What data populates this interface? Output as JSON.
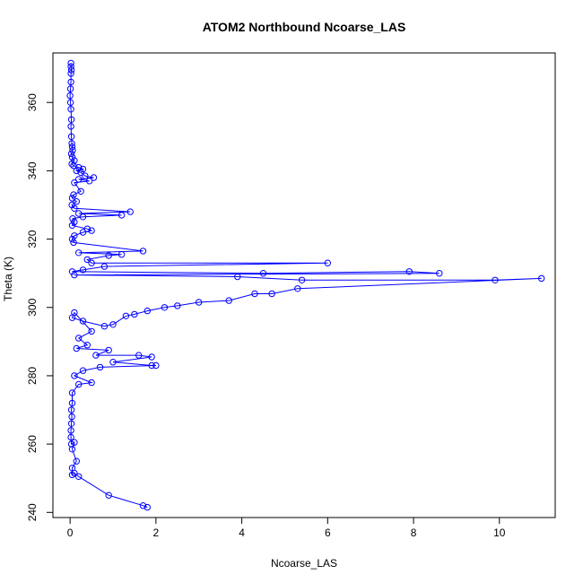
{
  "chart_data": {
    "type": "line",
    "title": "ATOM2 Northbound Ncoarse_LAS",
    "xlabel": "Ncoarse_LAS",
    "ylabel": "Theta (K)",
    "xlim": [
      -0.4,
      11.3
    ],
    "ylim": [
      238.5,
      374.5
    ],
    "xticks": [
      0,
      2,
      4,
      6,
      8,
      10
    ],
    "yticks": [
      240,
      260,
      280,
      300,
      320,
      340,
      360
    ],
    "grid": false,
    "legend": "none",
    "colors": {
      "series": "#0000ff"
    },
    "series": [
      {
        "points": [
          [
            0.02,
            371.5
          ],
          [
            0.02,
            370.5
          ],
          [
            0.03,
            369.5
          ],
          [
            0.02,
            368.5
          ],
          [
            0.02,
            366.0
          ],
          [
            0.01,
            364.0
          ],
          [
            0.0,
            362.0
          ],
          [
            0.01,
            360.0
          ],
          [
            0.02,
            358.0
          ],
          [
            0.03,
            355.0
          ],
          [
            0.02,
            353.0
          ],
          [
            0.03,
            350.0
          ],
          [
            0.04,
            348.0
          ],
          [
            0.05,
            347.0
          ],
          [
            0.06,
            346.0
          ],
          [
            0.03,
            345.0
          ],
          [
            0.05,
            344.0
          ],
          [
            0.1,
            343.0
          ],
          [
            0.04,
            342.0
          ],
          [
            0.08,
            341.5
          ],
          [
            0.2,
            341.0
          ],
          [
            0.3,
            340.5
          ],
          [
            0.15,
            340.0
          ],
          [
            0.25,
            339.5
          ],
          [
            0.35,
            338.5
          ],
          [
            0.55,
            338.0
          ],
          [
            0.2,
            337.5
          ],
          [
            0.45,
            337.0
          ],
          [
            0.1,
            336.5
          ],
          [
            0.25,
            334.0
          ],
          [
            0.08,
            333.0
          ],
          [
            0.05,
            332.0
          ],
          [
            0.15,
            331.0
          ],
          [
            0.04,
            330.0
          ],
          [
            0.1,
            329.0
          ],
          [
            1.4,
            328.0
          ],
          [
            0.2,
            327.5
          ],
          [
            1.2,
            327.0
          ],
          [
            0.3,
            326.5
          ],
          [
            0.06,
            326.0
          ],
          [
            0.1,
            325.0
          ],
          [
            0.05,
            324.0
          ],
          [
            0.4,
            323.0
          ],
          [
            0.5,
            322.5
          ],
          [
            0.3,
            322.0
          ],
          [
            0.1,
            321.0
          ],
          [
            0.05,
            320.0
          ],
          [
            0.08,
            319.0
          ],
          [
            1.7,
            316.5
          ],
          [
            0.2,
            316.0
          ],
          [
            1.2,
            315.5
          ],
          [
            0.9,
            315.2
          ],
          [
            0.4,
            314.0
          ],
          [
            0.5,
            313.0
          ],
          [
            6.0,
            313.0
          ],
          [
            0.8,
            312.0
          ],
          [
            0.3,
            311.0
          ],
          [
            0.05,
            310.5
          ],
          [
            4.5,
            310.0
          ],
          [
            7.9,
            310.5
          ],
          [
            8.6,
            310.0
          ],
          [
            0.1,
            309.5
          ],
          [
            3.9,
            309.0
          ],
          [
            5.4,
            308.0
          ],
          [
            9.9,
            308.0
          ],
          [
            10.98,
            308.5
          ],
          [
            5.3,
            305.5
          ],
          [
            4.7,
            304.0
          ],
          [
            4.3,
            304.0
          ],
          [
            3.7,
            302.0
          ],
          [
            3.0,
            301.5
          ],
          [
            2.5,
            300.5
          ],
          [
            2.2,
            300.0
          ],
          [
            1.8,
            299.0
          ],
          [
            1.5,
            298.0
          ],
          [
            1.3,
            297.5
          ],
          [
            1.0,
            295.0
          ],
          [
            0.8,
            294.5
          ],
          [
            0.3,
            296.0
          ],
          [
            0.05,
            297.0
          ],
          [
            0.1,
            298.5
          ],
          [
            0.5,
            293.0
          ],
          [
            0.2,
            291.0
          ],
          [
            0.4,
            289.0
          ],
          [
            0.15,
            288.0
          ],
          [
            0.9,
            287.5
          ],
          [
            0.6,
            286.0
          ],
          [
            1.6,
            286.0
          ],
          [
            1.9,
            285.5
          ],
          [
            1.0,
            284.0
          ],
          [
            1.9,
            283.0
          ],
          [
            2.0,
            283.0
          ],
          [
            0.7,
            282.5
          ],
          [
            0.3,
            281.5
          ],
          [
            0.1,
            280.0
          ],
          [
            0.5,
            278.0
          ],
          [
            0.2,
            277.5
          ],
          [
            0.05,
            275.0
          ],
          [
            0.05,
            272.0
          ],
          [
            0.03,
            270.0
          ],
          [
            0.04,
            268.0
          ],
          [
            0.03,
            266.0
          ],
          [
            0.02,
            264.0
          ],
          [
            0.02,
            262.0
          ],
          [
            0.03,
            260.0
          ],
          [
            0.1,
            260.5
          ],
          [
            0.05,
            258.5
          ],
          [
            0.15,
            255.0
          ],
          [
            0.05,
            253.0
          ],
          [
            0.05,
            251.0
          ],
          [
            0.1,
            251.5
          ],
          [
            0.2,
            250.5
          ],
          [
            0.9,
            245.0
          ],
          [
            1.7,
            242.0
          ],
          [
            1.8,
            241.5
          ]
        ]
      }
    ]
  }
}
